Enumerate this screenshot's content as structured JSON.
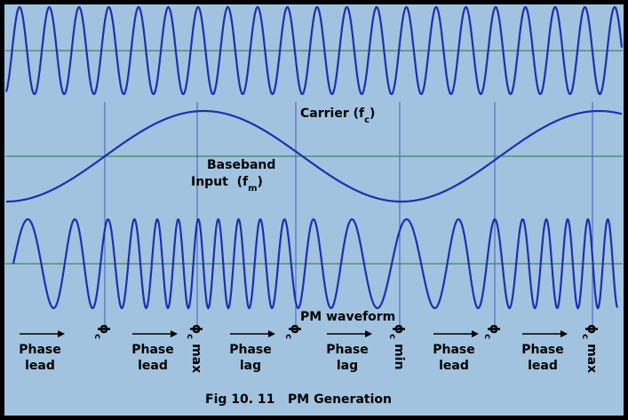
{
  "carrier": {
    "text": "Carrier (f",
    "sub": "c",
    "close": ")"
  },
  "baseband": {
    "line1": "Baseband",
    "line2": "Input  (f",
    "sub": "m",
    "close": ")"
  },
  "pm": "PM waveform",
  "phase_labels": [
    [
      "Phase",
      "lead"
    ],
    [
      "Phase",
      "lead"
    ],
    [
      "Phase",
      "lag"
    ],
    [
      "Phase",
      "lag"
    ],
    [
      "Phase",
      "lead"
    ],
    [
      "Phase",
      "lead"
    ]
  ],
  "markers": [
    {
      "symbol": "ϕ",
      "sub": "c"
    },
    {
      "symbol": "ϕ",
      "sub": "c",
      "suffix": "max"
    },
    {
      "symbol": "ϕ",
      "sub": "c"
    },
    {
      "symbol": "ϕ",
      "sub": "c",
      "suffix": "min"
    },
    {
      "symbol": "ϕ",
      "sub": "c"
    },
    {
      "symbol": "ϕ",
      "sub": "c",
      "suffix": "max"
    }
  ],
  "caption": "Fig 10. 11   PM Generation"
}
